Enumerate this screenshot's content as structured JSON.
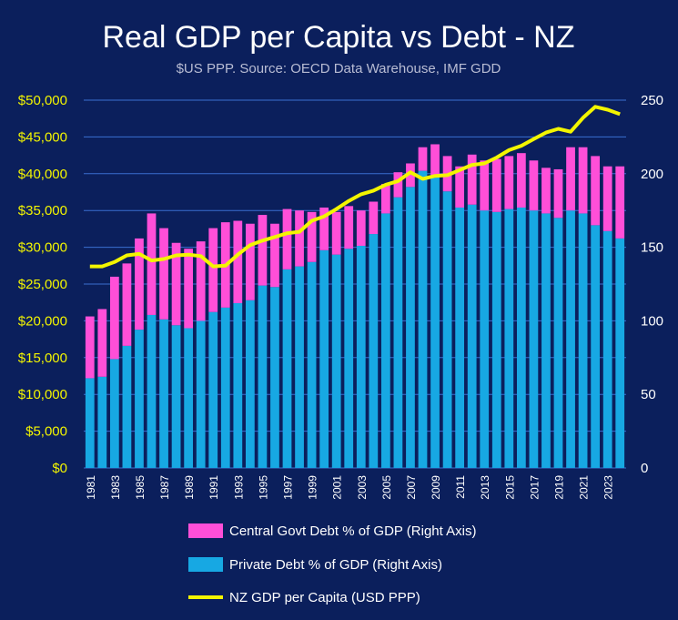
{
  "chart_data": {
    "type": "bar",
    "title": "Real GDP per Capita vs Debt - NZ",
    "subtitle": "$US PPP. Source: OECD Data Warehouse, IMF GDD",
    "x": [
      1981,
      1982,
      1983,
      1984,
      1985,
      1986,
      1987,
      1988,
      1989,
      1990,
      1991,
      1992,
      1993,
      1994,
      1995,
      1996,
      1997,
      1998,
      1999,
      2000,
      2001,
      2002,
      2003,
      2004,
      2005,
      2006,
      2007,
      2008,
      2009,
      2010,
      2011,
      2012,
      2013,
      2014,
      2015,
      2016,
      2017,
      2018,
      2019,
      2020,
      2021,
      2022,
      2023,
      2024
    ],
    "x_tick_labels": [
      "1981",
      "1983",
      "1985",
      "1987",
      "1989",
      "1991",
      "1993",
      "1995",
      "1997",
      "1999",
      "2001",
      "2003",
      "2005",
      "2007",
      "2009",
      "2011",
      "2013",
      "2015",
      "2017",
      "2019",
      "2021",
      "2023"
    ],
    "left_axis": {
      "range": [
        0,
        50000
      ],
      "ticks": [
        "$0",
        "$5,000",
        "$10,000",
        "$15,000",
        "$20,000",
        "$25,000",
        "$30,000",
        "$35,000",
        "$40,000",
        "$45,000",
        "$50,000"
      ],
      "color": "#f3f500"
    },
    "right_axis": {
      "range": [
        0,
        250
      ],
      "ticks": [
        "0",
        "50",
        "100",
        "150",
        "200",
        "250"
      ],
      "color": "#ffffff"
    },
    "series": [
      {
        "name": "Central Govt Debt % of GDP (Right Axis)",
        "kind": "stacked-bar",
        "axis": "right",
        "color": "#ff4fd8",
        "values": [
          42,
          46,
          56,
          56,
          62,
          69,
          62,
          56,
          54,
          54,
          57,
          58,
          56,
          52,
          48,
          43,
          41,
          38,
          34,
          29,
          29,
          29,
          24,
          22,
          20,
          17,
          16,
          16,
          21,
          24,
          28,
          34,
          34,
          36,
          36,
          37,
          34,
          31,
          33,
          43,
          45,
          47,
          44,
          49
        ]
      },
      {
        "name": "Private Debt % of GDP (Right Axis)",
        "kind": "stacked-bar",
        "axis": "right",
        "color": "#17a8e3",
        "values": [
          61,
          62,
          74,
          83,
          94,
          104,
          101,
          97,
          95,
          100,
          106,
          109,
          112,
          114,
          124,
          123,
          135,
          137,
          140,
          148,
          145,
          149,
          151,
          159,
          173,
          184,
          191,
          202,
          199,
          188,
          177,
          179,
          175,
          174,
          176,
          177,
          175,
          173,
          170,
          175,
          173,
          165,
          161,
          156
        ]
      },
      {
        "name": "NZ GDP per Capita (USD PPP)",
        "kind": "line",
        "axis": "left",
        "color": "#f3f500",
        "values": [
          27400,
          27400,
          28000,
          28900,
          29100,
          28200,
          28400,
          28900,
          29000,
          28800,
          27400,
          27500,
          29000,
          30300,
          30900,
          31400,
          31900,
          32100,
          33600,
          34200,
          35200,
          36300,
          37200,
          37700,
          38500,
          39000,
          40200,
          39300,
          39700,
          39800,
          40500,
          41200,
          41400,
          42200,
          43200,
          43800,
          44700,
          45600,
          46100,
          45700,
          47600,
          49100,
          48700,
          48100
        ]
      }
    ],
    "legend_position": "bottom",
    "grid": true
  }
}
